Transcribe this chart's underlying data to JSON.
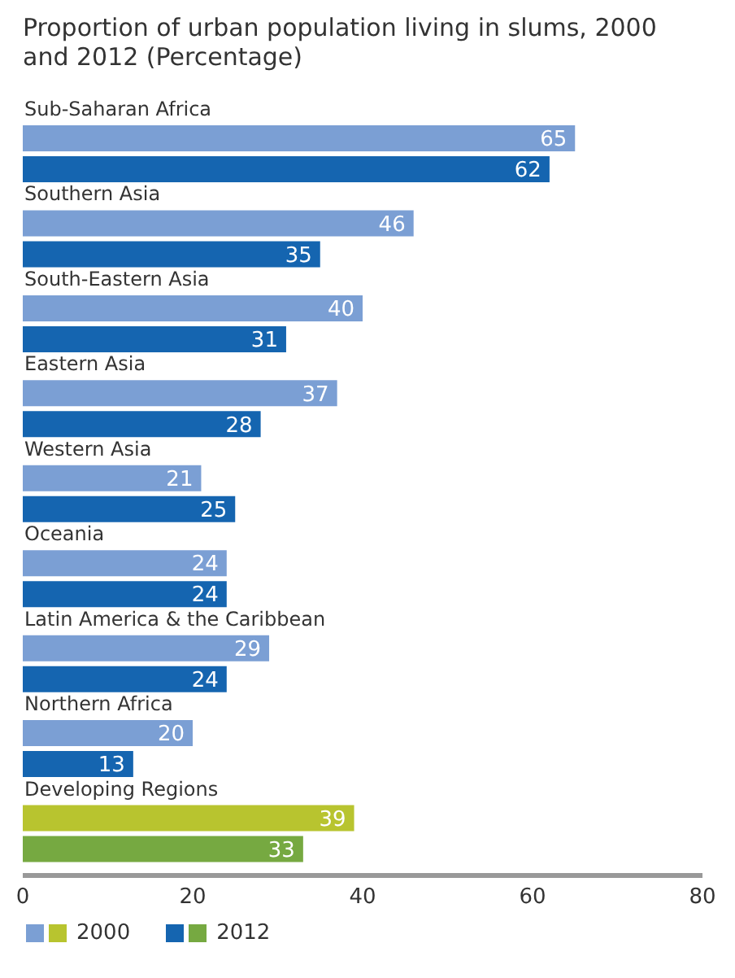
{
  "chart_data": {
    "type": "bar",
    "orientation": "horizontal",
    "title": "Proportion of urban population living in slums, 2000 and 2012 (Percentage)",
    "categories": [
      "Sub-Saharan Africa",
      "Southern Asia",
      "South-Eastern Asia",
      "Eastern Asia",
      "Western Asia",
      "Oceania",
      "Latin America & the Caribbean",
      "Northern Africa",
      "Developing Regions"
    ],
    "series": [
      {
        "name": "2000",
        "colors": [
          "#7b9fd4",
          "#7b9fd4",
          "#7b9fd4",
          "#7b9fd4",
          "#7b9fd4",
          "#7b9fd4",
          "#7b9fd4",
          "#7b9fd4",
          "#b8c42f"
        ],
        "values": [
          65,
          46,
          40,
          37,
          21,
          24,
          29,
          20,
          39
        ]
      },
      {
        "name": "2012",
        "colors": [
          "#1565b0",
          "#1565b0",
          "#1565b0",
          "#1565b0",
          "#1565b0",
          "#1565b0",
          "#1565b0",
          "#1565b0",
          "#76a941"
        ],
        "values": [
          62,
          35,
          31,
          28,
          25,
          24,
          24,
          13,
          33
        ]
      }
    ],
    "xlim": [
      0,
      80
    ],
    "xticks": [
      0,
      20,
      40,
      60,
      80
    ],
    "data_labels": true,
    "grid": false,
    "legend": "bottom"
  }
}
